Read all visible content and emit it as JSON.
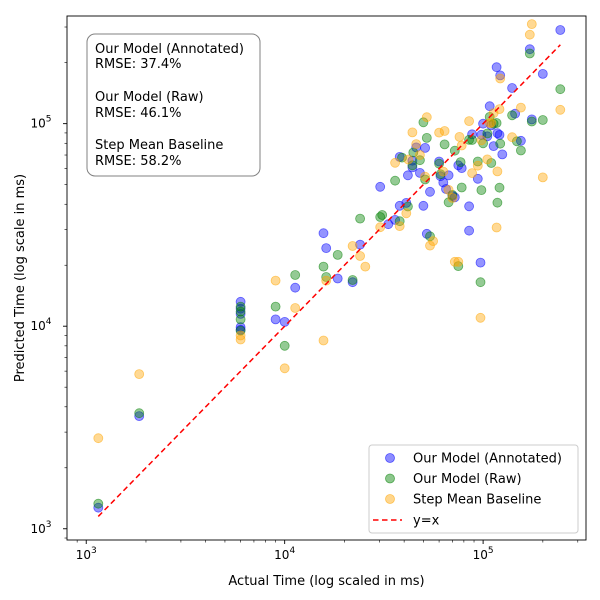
{
  "chart_data": {
    "type": "scatter",
    "title": "",
    "xlabel": "Actual Time (log scaled in ms)",
    "ylabel": "Predicted Time (log scale in ms)",
    "xscale": "log",
    "yscale": "log",
    "xlim": [
      800,
      330000
    ],
    "ylim": [
      880,
      340000
    ],
    "xticks": [
      {
        "value": 1000,
        "base": "10",
        "exp": "3"
      },
      {
        "value": 10000,
        "base": "10",
        "exp": "4"
      },
      {
        "value": 100000,
        "base": "10",
        "exp": "5"
      }
    ],
    "yticks": [
      {
        "value": 1000,
        "base": "10",
        "exp": "3"
      },
      {
        "value": 10000,
        "base": "10",
        "exp": "4"
      },
      {
        "value": 100000,
        "base": "10",
        "exp": "5"
      }
    ],
    "annotation": {
      "lines": [
        "Our Model (Annotated)",
        "RMSE: 37.4%",
        "",
        "Our Model (Raw)",
        "RMSE: 46.1%",
        "",
        "Step Mean Baseline",
        "RMSE: 58.2%"
      ]
    },
    "legend": {
      "position": "lower-right",
      "entries": [
        "Our Model (Annotated)",
        "Our Model (Raw)",
        "Step Mean Baseline",
        "y=x"
      ]
    },
    "reference_line": {
      "name": "y=x",
      "color": "#ff0000",
      "from": 1150,
      "to": 245000
    },
    "series": [
      {
        "name": "Our Model (Annotated)",
        "color": "#0000ff",
        "points": [
          [
            1150,
            1270
          ],
          [
            1850,
            3600
          ],
          [
            6000,
            13200
          ],
          [
            6000,
            12200
          ],
          [
            6000,
            11500
          ],
          [
            6000,
            9900
          ],
          [
            6000,
            9600
          ],
          [
            9000,
            10800
          ],
          [
            10000,
            10500
          ],
          [
            11300,
            15500
          ],
          [
            15700,
            28800
          ],
          [
            16200,
            24300
          ],
          [
            18500,
            17200
          ],
          [
            22000,
            16500
          ],
          [
            24000,
            25300
          ],
          [
            30300,
            48800
          ],
          [
            33300,
            31900
          ],
          [
            36000,
            33500
          ],
          [
            38000,
            39300
          ],
          [
            38000,
            68500
          ],
          [
            41000,
            40600
          ],
          [
            41800,
            55600
          ],
          [
            44000,
            60800
          ],
          [
            44000,
            65600
          ],
          [
            46000,
            76300
          ],
          [
            48000,
            57100
          ],
          [
            50000,
            39300
          ],
          [
            51000,
            75900
          ],
          [
            52000,
            28600
          ],
          [
            54000,
            46100
          ],
          [
            60000,
            65000
          ],
          [
            61000,
            55000
          ],
          [
            63000,
            51200
          ],
          [
            65000,
            47600
          ],
          [
            67000,
            55600
          ],
          [
            70000,
            44000
          ],
          [
            72000,
            43300
          ],
          [
            75000,
            62300
          ],
          [
            78000,
            60300
          ],
          [
            85000,
            29600
          ],
          [
            85000,
            39100
          ],
          [
            88000,
            88600
          ],
          [
            94000,
            53400
          ],
          [
            97000,
            20600
          ],
          [
            98000,
            88100
          ],
          [
            100000,
            100000
          ],
          [
            105000,
            86600
          ],
          [
            108000,
            122000
          ],
          [
            110000,
            98000
          ],
          [
            113000,
            77500
          ],
          [
            117000,
            190000
          ],
          [
            118000,
            89700
          ],
          [
            121000,
            88000
          ],
          [
            122000,
            173000
          ],
          [
            125000,
            70500
          ],
          [
            140000,
            150000
          ],
          [
            145000,
            112000
          ],
          [
            155000,
            82300
          ],
          [
            172000,
            233000
          ],
          [
            176000,
            105000
          ],
          [
            200000,
            176000
          ],
          [
            245000,
            290000
          ]
        ]
      },
      {
        "name": "Our Model (Raw)",
        "color": "#008000",
        "points": [
          [
            1150,
            1330
          ],
          [
            1850,
            3720
          ],
          [
            6000,
            12500
          ],
          [
            6000,
            11800
          ],
          [
            6000,
            10800
          ],
          [
            6000,
            9500
          ],
          [
            9000,
            12500
          ],
          [
            10000,
            8000
          ],
          [
            11300,
            17900
          ],
          [
            15700,
            19700
          ],
          [
            16200,
            17500
          ],
          [
            18500,
            22500
          ],
          [
            22000,
            16900
          ],
          [
            24000,
            34000
          ],
          [
            30300,
            34600
          ],
          [
            31000,
            35400
          ],
          [
            36000,
            52300
          ],
          [
            38000,
            33000
          ],
          [
            39000,
            68000
          ],
          [
            41800,
            39000
          ],
          [
            44000,
            62300
          ],
          [
            44500,
            72000
          ],
          [
            48000,
            66000
          ],
          [
            50000,
            101500
          ],
          [
            51000,
            53000
          ],
          [
            52000,
            85000
          ],
          [
            54000,
            27800
          ],
          [
            60000,
            63400
          ],
          [
            61000,
            56300
          ],
          [
            64000,
            79000
          ],
          [
            67000,
            40900
          ],
          [
            70000,
            44500
          ],
          [
            72000,
            73500
          ],
          [
            75000,
            19800
          ],
          [
            77000,
            64600
          ],
          [
            78000,
            48400
          ],
          [
            85000,
            83200
          ],
          [
            88000,
            83000
          ],
          [
            94000,
            65000
          ],
          [
            97000,
            16500
          ],
          [
            98000,
            47000
          ],
          [
            100000,
            80000
          ],
          [
            105000,
            89400
          ],
          [
            108000,
            108000
          ],
          [
            110000,
            63900
          ],
          [
            113000,
            100000
          ],
          [
            117000,
            100700
          ],
          [
            118000,
            40700
          ],
          [
            121000,
            48300
          ],
          [
            122000,
            79600
          ],
          [
            140000,
            110000
          ],
          [
            148000,
            81800
          ],
          [
            155000,
            73700
          ],
          [
            172000,
            222000
          ],
          [
            176000,
            102500
          ],
          [
            200000,
            104200
          ],
          [
            245000,
            148000
          ]
        ]
      },
      {
        "name": "Step Mean Baseline",
        "color": "#ffa500",
        "points": [
          [
            1150,
            2800
          ],
          [
            1850,
            5800
          ],
          [
            6000,
            9000
          ],
          [
            6000,
            8600
          ],
          [
            9000,
            16800
          ],
          [
            10000,
            6200
          ],
          [
            11300,
            12300
          ],
          [
            15700,
            8500
          ],
          [
            16200,
            16800
          ],
          [
            22000,
            24900
          ],
          [
            24000,
            22200
          ],
          [
            25500,
            19700
          ],
          [
            30300,
            30800
          ],
          [
            36000,
            64100
          ],
          [
            38000,
            31200
          ],
          [
            41000,
            36100
          ],
          [
            42000,
            66500
          ],
          [
            44000,
            90500
          ],
          [
            46000,
            79300
          ],
          [
            48000,
            70000
          ],
          [
            51000,
            54700
          ],
          [
            52000,
            107600
          ],
          [
            54000,
            25000
          ],
          [
            56000,
            26300
          ],
          [
            60000,
            90300
          ],
          [
            63000,
            58000
          ],
          [
            64000,
            92000
          ],
          [
            67000,
            47100
          ],
          [
            70000,
            43000
          ],
          [
            72000,
            20800
          ],
          [
            75000,
            20800
          ],
          [
            76000,
            86000
          ],
          [
            78000,
            78000
          ],
          [
            85000,
            103000
          ],
          [
            88000,
            57000
          ],
          [
            94000,
            62000
          ],
          [
            97000,
            11000
          ],
          [
            98000,
            82800
          ],
          [
            105000,
            66600
          ],
          [
            108000,
            100800
          ],
          [
            110000,
            101000
          ],
          [
            113000,
            112600
          ],
          [
            117000,
            30700
          ],
          [
            118000,
            58100
          ],
          [
            121000,
            118000
          ],
          [
            122000,
            167000
          ],
          [
            140000,
            85700
          ],
          [
            155000,
            120000
          ],
          [
            172000,
            275000
          ],
          [
            176000,
            310000
          ],
          [
            200000,
            54300
          ],
          [
            245000,
            117000
          ]
        ]
      }
    ]
  }
}
